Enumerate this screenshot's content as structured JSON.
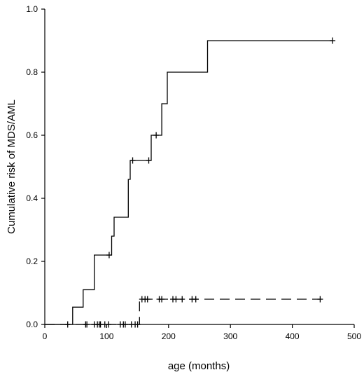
{
  "chart_data": {
    "type": "line",
    "title": "",
    "xlabel": "age  (months)",
    "ylabel": "Cumulative risk of MDS/AML",
    "xlim": [
      0,
      500
    ],
    "ylim": [
      0,
      1.0
    ],
    "xticks": [
      0,
      100,
      200,
      300,
      400,
      500
    ],
    "xtick_labels": [
      "0",
      "100",
      "200",
      "300",
      "400",
      "500"
    ],
    "yticks": [
      0,
      0.2,
      0.4,
      0.6,
      0.8,
      1.0
    ],
    "ytick_labels": [
      "0.0",
      "0.2",
      "0.4",
      "0.6",
      "0.8",
      "1.0"
    ],
    "grid": false,
    "legend": "none",
    "series": [
      {
        "style": "solid",
        "color": "#000000",
        "steps": [
          [
            0,
            0
          ],
          [
            45,
            0
          ],
          [
            45,
            0.055
          ],
          [
            62,
            0.055
          ],
          [
            62,
            0.11
          ],
          [
            80,
            0.11
          ],
          [
            80,
            0.22
          ],
          [
            108,
            0.22
          ],
          [
            108,
            0.28
          ],
          [
            112,
            0.28
          ],
          [
            112,
            0.34
          ],
          [
            135,
            0.34
          ],
          [
            135,
            0.46
          ],
          [
            138,
            0.46
          ],
          [
            138,
            0.52
          ],
          [
            172,
            0.52
          ],
          [
            172,
            0.6
          ],
          [
            189,
            0.6
          ],
          [
            189,
            0.7
          ],
          [
            198,
            0.7
          ],
          [
            198,
            0.8
          ],
          [
            263,
            0.8
          ],
          [
            263,
            0.9
          ],
          [
            465,
            0.9
          ]
        ],
        "censored": [
          {
            "x": 104,
            "y": 0.22
          },
          {
            "x": 142,
            "y": 0.52
          },
          {
            "x": 168,
            "y": 0.52
          },
          {
            "x": 180,
            "y": 0.6
          },
          {
            "x": 465,
            "y": 0.9
          }
        ]
      },
      {
        "style": "dashed",
        "color": "#000000",
        "steps": [
          [
            0,
            0
          ],
          [
            153,
            0
          ],
          [
            153,
            0.08
          ],
          [
            445,
            0.08
          ]
        ],
        "censored": [
          {
            "x": 37,
            "y": 0
          },
          {
            "x": 66,
            "y": 0
          },
          {
            "x": 68,
            "y": 0
          },
          {
            "x": 80,
            "y": 0
          },
          {
            "x": 85,
            "y": 0
          },
          {
            "x": 88,
            "y": 0
          },
          {
            "x": 90,
            "y": 0
          },
          {
            "x": 97,
            "y": 0
          },
          {
            "x": 103,
            "y": 0
          },
          {
            "x": 122,
            "y": 0
          },
          {
            "x": 127,
            "y": 0
          },
          {
            "x": 130,
            "y": 0
          },
          {
            "x": 140,
            "y": 0
          },
          {
            "x": 146,
            "y": 0
          },
          {
            "x": 150,
            "y": 0
          },
          {
            "x": 157,
            "y": 0.08
          },
          {
            "x": 162,
            "y": 0.08
          },
          {
            "x": 166,
            "y": 0.08
          },
          {
            "x": 185,
            "y": 0.08
          },
          {
            "x": 189,
            "y": 0.08
          },
          {
            "x": 207,
            "y": 0.08
          },
          {
            "x": 212,
            "y": 0.08
          },
          {
            "x": 222,
            "y": 0.08
          },
          {
            "x": 238,
            "y": 0.08
          },
          {
            "x": 244,
            "y": 0.08
          },
          {
            "x": 445,
            "y": 0.08
          }
        ]
      }
    ]
  }
}
